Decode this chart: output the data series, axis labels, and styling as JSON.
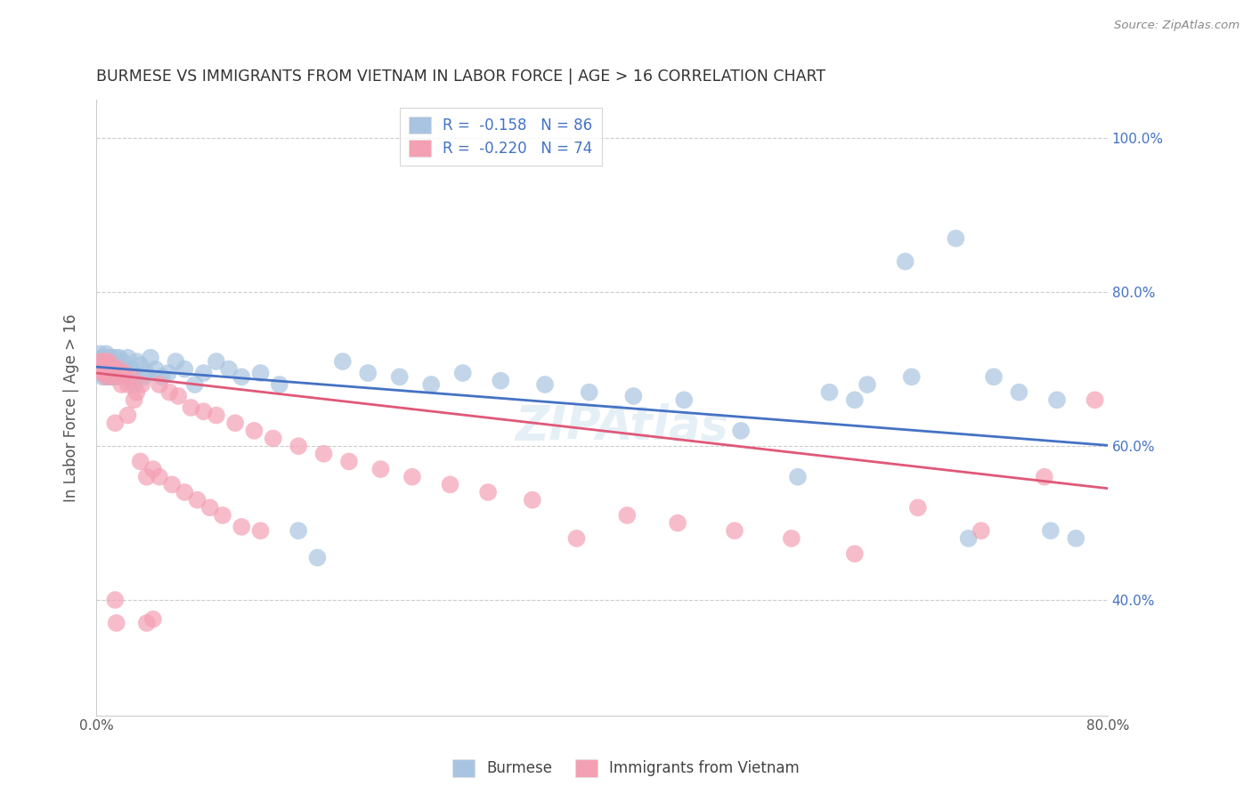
{
  "title": "BURMESE VS IMMIGRANTS FROM VIETNAM IN LABOR FORCE | AGE > 16 CORRELATION CHART",
  "source": "Source: ZipAtlas.com",
  "ylabel": "In Labor Force | Age > 16",
  "xlim": [
    0.0,
    0.8
  ],
  "ylim": [
    0.25,
    1.05
  ],
  "xtick_positions": [
    0.0,
    0.1,
    0.2,
    0.3,
    0.4,
    0.5,
    0.6,
    0.7,
    0.8
  ],
  "xticklabels": [
    "0.0%",
    "",
    "",
    "",
    "",
    "",
    "",
    "",
    "80.0%"
  ],
  "yticks_right": [
    0.4,
    0.6,
    0.8,
    1.0
  ],
  "ytick_right_labels": [
    "40.0%",
    "60.0%",
    "80.0%",
    "100.0%"
  ],
  "legend_R1": "-0.158",
  "legend_N1": "86",
  "legend_R2": "-0.220",
  "legend_N2": "74",
  "blue_color": "#A8C4E0",
  "pink_color": "#F4A0B4",
  "blue_line_color": "#4472C4",
  "pink_line_color": "#E05878",
  "title_color": "#333333",
  "axis_label_color": "#555555",
  "right_tick_color": "#4472C4",
  "background_color": "#FFFFFF",
  "grid_color": "#CCCCCC",
  "watermark": "ZIPAtlas",
  "blue_line_start_y": 0.703,
  "blue_line_end_y": 0.601,
  "pink_line_start_y": 0.695,
  "pink_line_end_y": 0.545,
  "blue_x": [
    0.002,
    0.003,
    0.004,
    0.004,
    0.005,
    0.005,
    0.005,
    0.006,
    0.006,
    0.006,
    0.007,
    0.007,
    0.007,
    0.008,
    0.008,
    0.008,
    0.009,
    0.009,
    0.01,
    0.01,
    0.01,
    0.01,
    0.011,
    0.011,
    0.012,
    0.012,
    0.013,
    0.013,
    0.014,
    0.015,
    0.015,
    0.016,
    0.017,
    0.018,
    0.019,
    0.02,
    0.021,
    0.022,
    0.023,
    0.025,
    0.027,
    0.028,
    0.03,
    0.032,
    0.035,
    0.038,
    0.04,
    0.043,
    0.047,
    0.052,
    0.057,
    0.063,
    0.07,
    0.078,
    0.085,
    0.095,
    0.105,
    0.115,
    0.13,
    0.145,
    0.16,
    0.175,
    0.195,
    0.215,
    0.24,
    0.265,
    0.29,
    0.32,
    0.355,
    0.39,
    0.425,
    0.465,
    0.51,
    0.555,
    0.6,
    0.645,
    0.69,
    0.71,
    0.73,
    0.755,
    0.775,
    0.76,
    0.68,
    0.64,
    0.61,
    0.58
  ],
  "blue_y": [
    0.7,
    0.72,
    0.695,
    0.71,
    0.715,
    0.7,
    0.69,
    0.705,
    0.695,
    0.715,
    0.7,
    0.71,
    0.695,
    0.72,
    0.7,
    0.69,
    0.705,
    0.695,
    0.715,
    0.7,
    0.69,
    0.71,
    0.7,
    0.695,
    0.715,
    0.7,
    0.69,
    0.71,
    0.695,
    0.715,
    0.7,
    0.69,
    0.705,
    0.715,
    0.7,
    0.695,
    0.71,
    0.7,
    0.695,
    0.715,
    0.7,
    0.695,
    0.68,
    0.71,
    0.705,
    0.69,
    0.695,
    0.715,
    0.7,
    0.69,
    0.695,
    0.71,
    0.7,
    0.68,
    0.695,
    0.71,
    0.7,
    0.69,
    0.695,
    0.68,
    0.49,
    0.455,
    0.71,
    0.695,
    0.69,
    0.68,
    0.695,
    0.685,
    0.68,
    0.67,
    0.665,
    0.66,
    0.62,
    0.56,
    0.66,
    0.69,
    0.48,
    0.69,
    0.67,
    0.49,
    0.48,
    0.66,
    0.87,
    0.84,
    0.68,
    0.67
  ],
  "pink_x": [
    0.002,
    0.003,
    0.004,
    0.005,
    0.005,
    0.006,
    0.006,
    0.007,
    0.007,
    0.008,
    0.008,
    0.009,
    0.009,
    0.01,
    0.01,
    0.011,
    0.012,
    0.012,
    0.013,
    0.014,
    0.015,
    0.016,
    0.018,
    0.019,
    0.02,
    0.022,
    0.025,
    0.028,
    0.032,
    0.036,
    0.04,
    0.045,
    0.05,
    0.058,
    0.065,
    0.075,
    0.085,
    0.095,
    0.11,
    0.125,
    0.14,
    0.16,
    0.18,
    0.2,
    0.225,
    0.25,
    0.28,
    0.31,
    0.345,
    0.38,
    0.42,
    0.46,
    0.505,
    0.55,
    0.6,
    0.65,
    0.7,
    0.75,
    0.79,
    0.015,
    0.02,
    0.025,
    0.03,
    0.035,
    0.04,
    0.045,
    0.05,
    0.06,
    0.07,
    0.08,
    0.09,
    0.1,
    0.115,
    0.13
  ],
  "pink_y": [
    0.7,
    0.71,
    0.7,
    0.695,
    0.705,
    0.7,
    0.71,
    0.695,
    0.705,
    0.7,
    0.69,
    0.705,
    0.695,
    0.7,
    0.71,
    0.695,
    0.7,
    0.705,
    0.69,
    0.695,
    0.4,
    0.37,
    0.7,
    0.695,
    0.69,
    0.695,
    0.68,
    0.69,
    0.67,
    0.68,
    0.37,
    0.375,
    0.68,
    0.67,
    0.665,
    0.65,
    0.645,
    0.64,
    0.63,
    0.62,
    0.61,
    0.6,
    0.59,
    0.58,
    0.57,
    0.56,
    0.55,
    0.54,
    0.53,
    0.48,
    0.51,
    0.5,
    0.49,
    0.48,
    0.46,
    0.52,
    0.49,
    0.56,
    0.66,
    0.63,
    0.68,
    0.64,
    0.66,
    0.58,
    0.56,
    0.57,
    0.56,
    0.55,
    0.54,
    0.53,
    0.52,
    0.51,
    0.495,
    0.49
  ]
}
